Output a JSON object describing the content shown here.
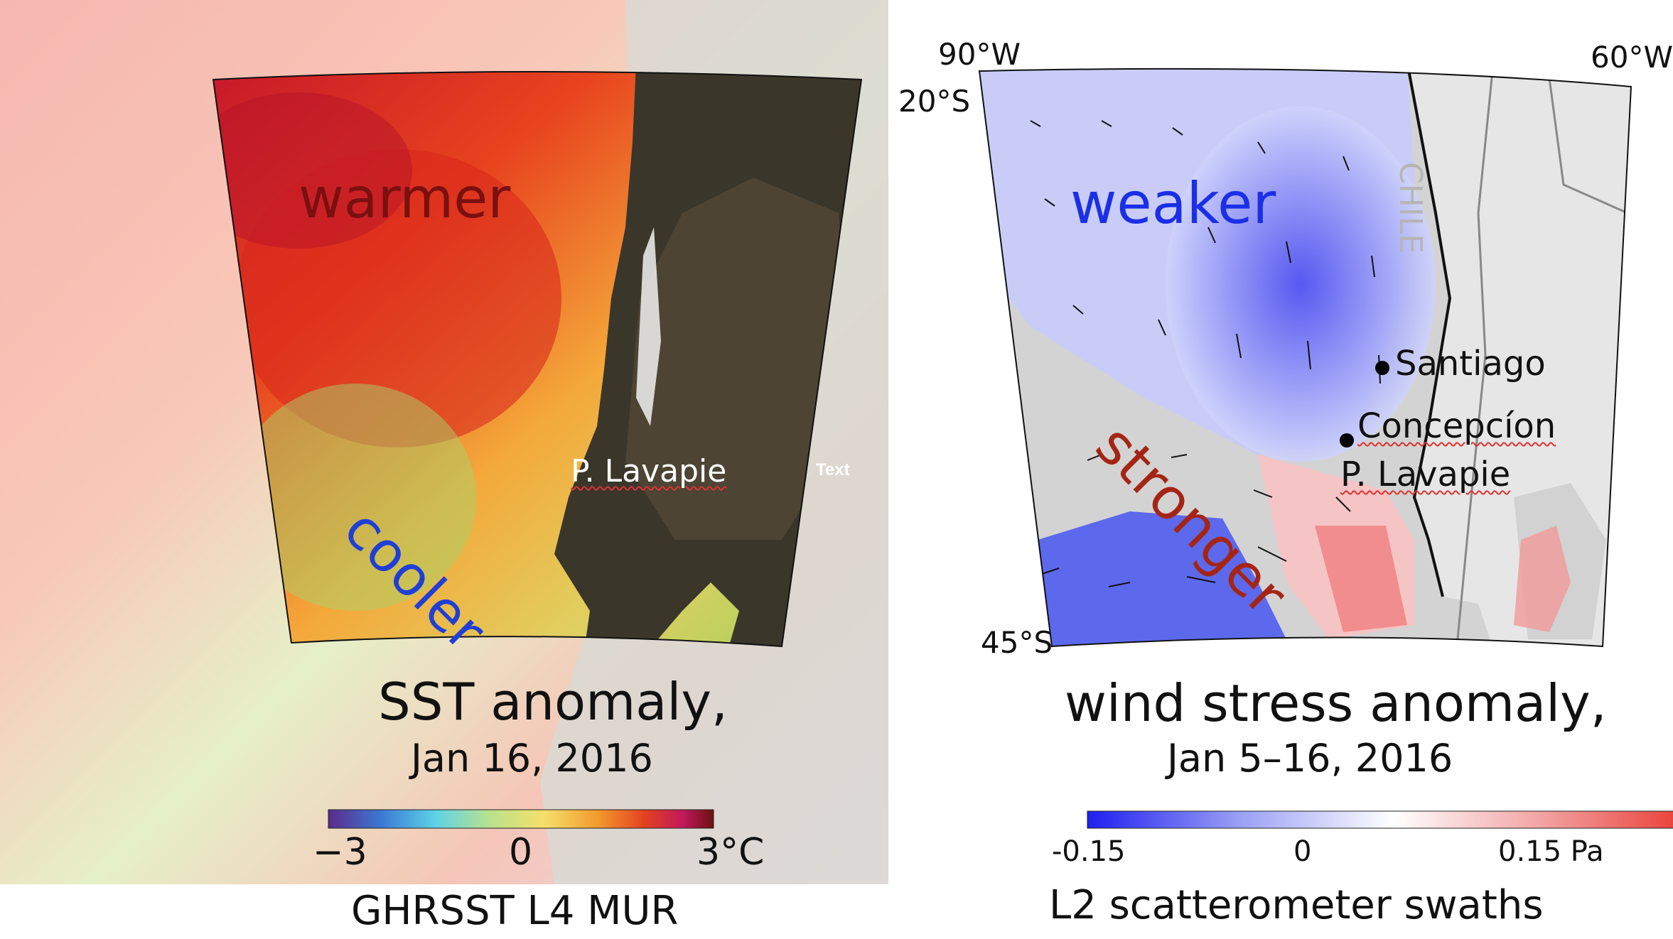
{
  "left_panel": {
    "warm_label": "warmer",
    "cool_label": "cooler",
    "place_label": "P. Lavapie",
    "placeholder_text": "Text",
    "title": "SST anomaly,",
    "date": "Jan 16, 2016",
    "colorbar": {
      "min_label": "−3",
      "mid_label": "0",
      "max_label": "3°C",
      "colors": [
        "#5b2a8c",
        "#3a7bd5",
        "#5fd3e6",
        "#b9e28c",
        "#f5e06a",
        "#f29a2e",
        "#e3421f",
        "#c2185b",
        "#6b1010"
      ]
    },
    "source": "GHRSST L4 MUR"
  },
  "right_panel": {
    "lon_west": "90°W",
    "lon_east": "60°W",
    "lat_north": "20°S",
    "lat_south": "45°S",
    "weak_label": "weaker",
    "strong_label": "stronger",
    "country_label": "CHILE",
    "cities": [
      "Santiago",
      "Concepcíon",
      "P. Lavapie"
    ],
    "title": "wind stress anomaly,",
    "date": "Jan 5–16, 2016",
    "colorbar": {
      "min_label": "-0.15",
      "mid_label": "0",
      "max_label": "0.15 Pa",
      "colors": [
        "#1f1ff0",
        "#9aa0f5",
        "#ffffff",
        "#f2a0a0",
        "#e8332a"
      ]
    },
    "source": "L2 scatterometer swaths"
  },
  "colors": {
    "weak": "#1a2fe6",
    "strong": "#a52515",
    "warm_text": "#7a1010",
    "cool_text": "#1f3fd6"
  }
}
